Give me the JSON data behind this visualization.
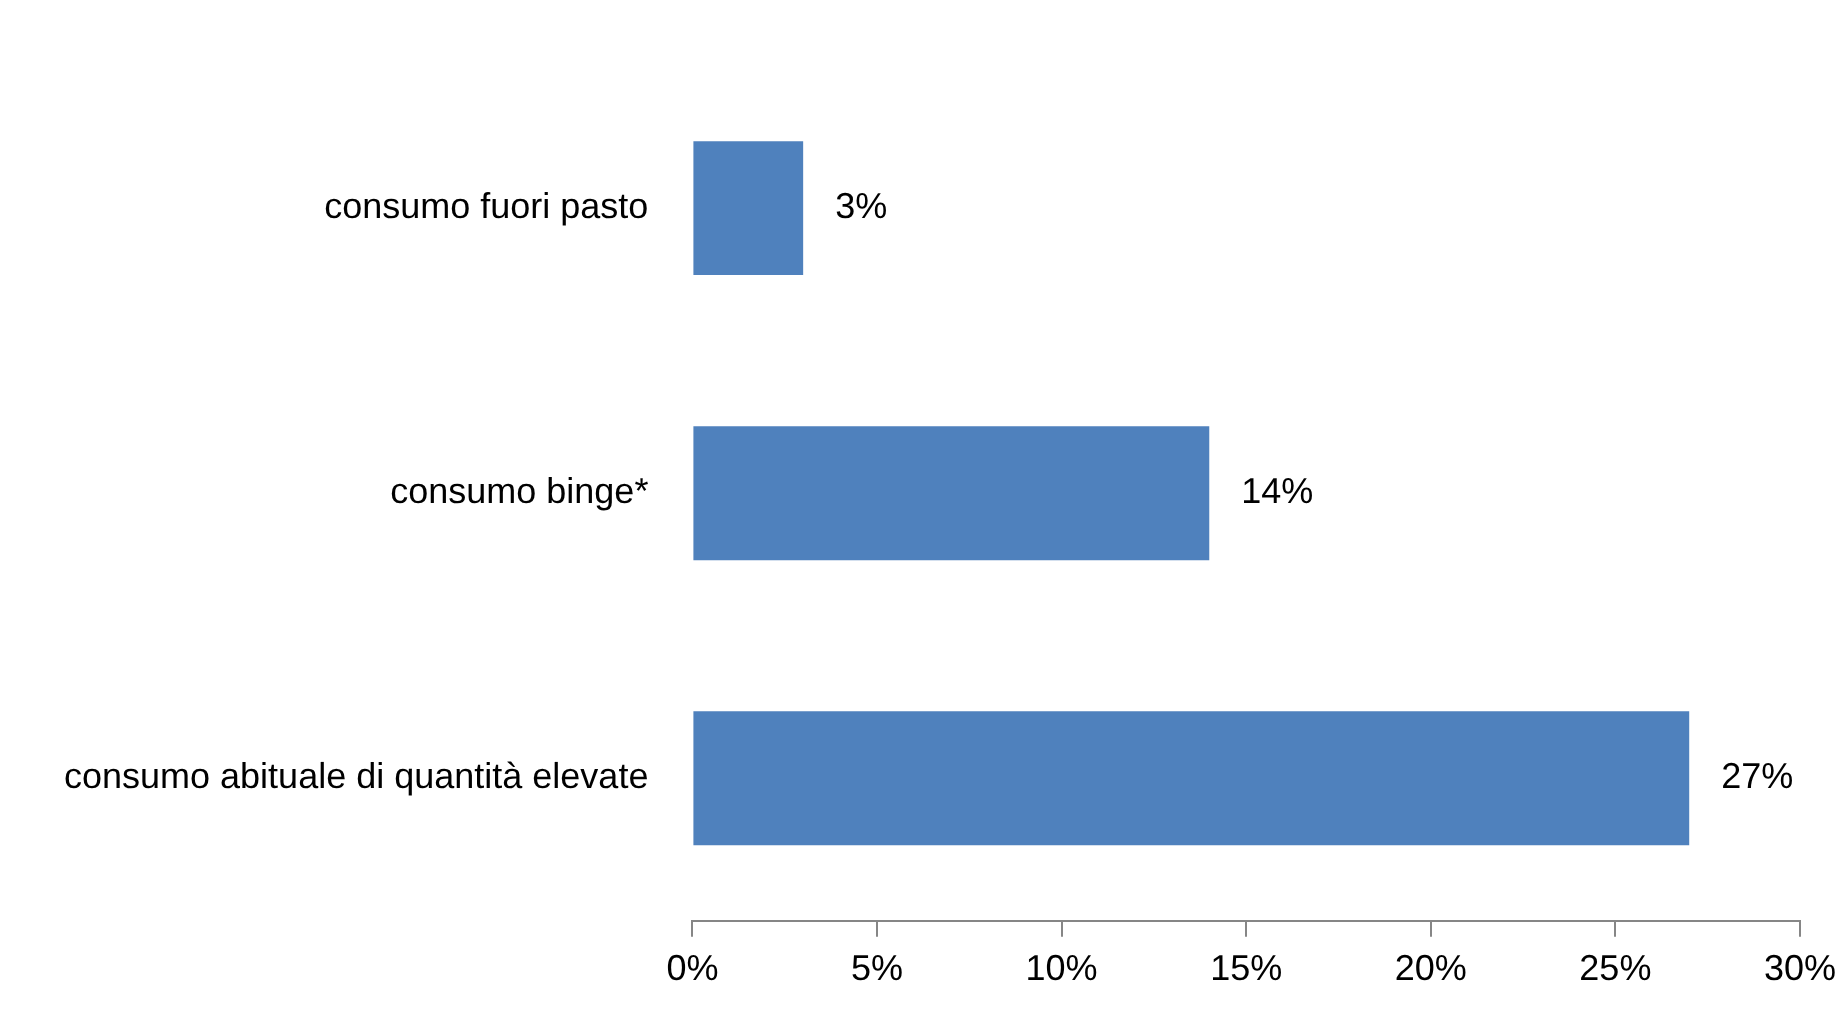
{
  "chart_data": {
    "type": "bar",
    "orientation": "horizontal",
    "categories": [
      "consumo fuori pasto",
      "consumo binge*",
      "consumo abituale di quantità elevate"
    ],
    "values": [
      3,
      14,
      27
    ],
    "color": "#4f81bd",
    "value_labels": [
      "3%",
      "14%",
      "27%"
    ],
    "xlim": [
      0,
      30
    ],
    "xticks": [
      {
        "value": 0,
        "label": "0%"
      },
      {
        "value": 5,
        "label": "5%"
      },
      {
        "value": 10,
        "label": "10%"
      },
      {
        "value": 15,
        "label": "15%"
      },
      {
        "value": 20,
        "label": "20%"
      },
      {
        "value": 25,
        "label": "25%"
      },
      {
        "value": 30,
        "label": "30%"
      }
    ],
    "grid": false,
    "legend": false
  }
}
